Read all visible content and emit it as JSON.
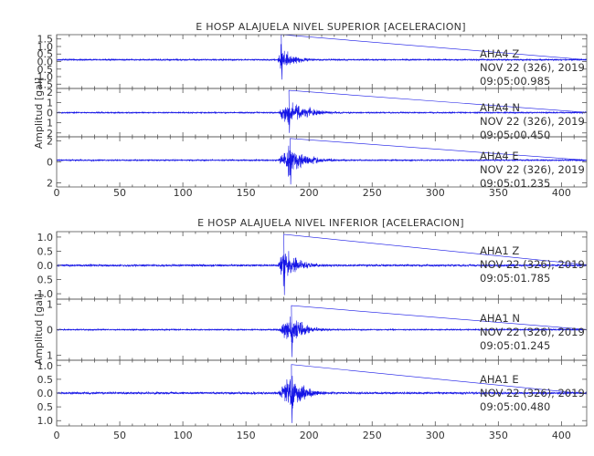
{
  "chart_data": [
    {
      "type": "line",
      "title": "E HOSP ALAJUELA NIVEL SUPERIOR [ACELERACION]",
      "ylabel": "Amplitud [gal]",
      "xlim": [
        0,
        420
      ],
      "x_ticks": [
        "0",
        "50",
        "100",
        "150",
        "200",
        "250",
        "300",
        "350",
        "400"
      ],
      "channels": [
        {
          "station": "AHA4",
          "component": "Z",
          "date": "NOV 22 (326), 2019",
          "time": "09:05:00.985",
          "y_ticks": [
            "1.5",
            "1.0",
            "0.5",
            "0.0",
            "0.5",
            "1.0",
            "1.5"
          ],
          "ylim": [
            -1.5,
            1.5
          ],
          "baseline": 0.1,
          "noise": 0.03,
          "event_start": 175,
          "peak_time": 178,
          "peak_pos": 1.5,
          "peak_neg": -1.0,
          "decay": 9,
          "duration": 40,
          "seed": 11
        },
        {
          "station": "AHA4",
          "component": "N",
          "date": "NOV 22 (326), 2019",
          "time": "09:05:00.450",
          "y_ticks": [
            "2",
            "1",
            "0",
            "1",
            "2"
          ],
          "ylim": [
            -2.5,
            2.5
          ],
          "baseline": 0.0,
          "noise": 0.05,
          "event_start": 175,
          "peak_time": 184,
          "peak_pos": 2.3,
          "peak_neg": -2.1,
          "decay": 14,
          "duration": 55,
          "seed": 23
        },
        {
          "station": "AHA4",
          "component": "E",
          "date": "NOV 22 (326), 2019",
          "time": "09:05:01.235",
          "y_ticks": [
            "2",
            "0",
            "2"
          ],
          "ylim": [
            -3.2,
            2.8
          ],
          "baseline": 0.0,
          "noise": 0.06,
          "event_start": 175,
          "peak_time": 185,
          "peak_pos": 2.6,
          "peak_neg": -2.9,
          "decay": 13,
          "duration": 55,
          "seed": 37
        }
      ]
    },
    {
      "type": "line",
      "title": "E HOSP ALAJUELA NIVEL INFERIOR [ACELERACION]",
      "ylabel": "Amplitud [gal]",
      "xlim": [
        0,
        420
      ],
      "x_ticks": [
        "0",
        "50",
        "100",
        "150",
        "200",
        "250",
        "300",
        "350",
        "400"
      ],
      "channels": [
        {
          "station": "AHA1",
          "component": "Z",
          "date": "NOV 22 (326), 2019",
          "time": "09:05:01.785",
          "y_ticks": [
            "1.0",
            "0.5",
            "0.0",
            "0.5",
            "1.0"
          ],
          "ylim": [
            -1.25,
            1.25
          ],
          "baseline": 0.0,
          "noise": 0.03,
          "event_start": 175,
          "peak_time": 180,
          "peak_pos": 1.15,
          "peak_neg": -1.1,
          "decay": 10,
          "duration": 45,
          "seed": 53
        },
        {
          "station": "AHA1",
          "component": "N",
          "date": "NOV 22 (326), 2019",
          "time": "09:05:01.245",
          "y_ticks": [
            "1",
            "0",
            "1"
          ],
          "ylim": [
            -1.9,
            1.9
          ],
          "baseline": 0.0,
          "noise": 0.03,
          "event_start": 175,
          "peak_time": 186,
          "peak_pos": 1.5,
          "peak_neg": -1.7,
          "decay": 10,
          "duration": 45,
          "seed": 71
        },
        {
          "station": "AHA1",
          "component": "E",
          "date": "NOV 22 (326), 2019",
          "time": "09:05:00.480",
          "y_ticks": [
            "1.0",
            "0.5",
            "0.0",
            "0.5",
            "1.0"
          ],
          "ylim": [
            -1.15,
            1.15
          ],
          "baseline": 0.0,
          "noise": 0.03,
          "event_start": 175,
          "peak_time": 186,
          "peak_pos": 1.0,
          "peak_neg": -1.05,
          "decay": 10,
          "duration": 45,
          "seed": 89
        }
      ]
    }
  ]
}
